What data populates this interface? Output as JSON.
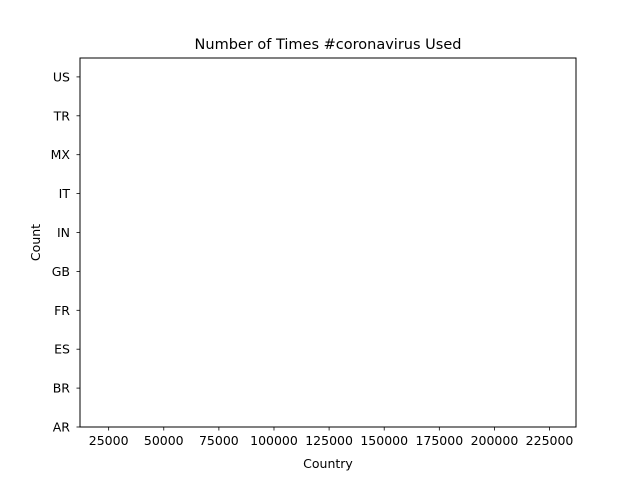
{
  "chart_data": {
    "type": "bar",
    "orientation": "horizontal",
    "title": "Number of Times #coronavirus Used",
    "xlabel": "Country",
    "ylabel": "Count",
    "categories": [
      "AR",
      "BR",
      "ES",
      "FR",
      "GB",
      "IN",
      "IT",
      "MX",
      "TR",
      "US"
    ],
    "values": [
      null,
      null,
      null,
      null,
      null,
      null,
      null,
      null,
      null,
      null
    ],
    "xticks": [
      25000,
      50000,
      75000,
      100000,
      125000,
      150000,
      175000,
      200000,
      225000
    ],
    "xlim": [
      12000,
      237000
    ],
    "grid": false,
    "legend": "none"
  }
}
